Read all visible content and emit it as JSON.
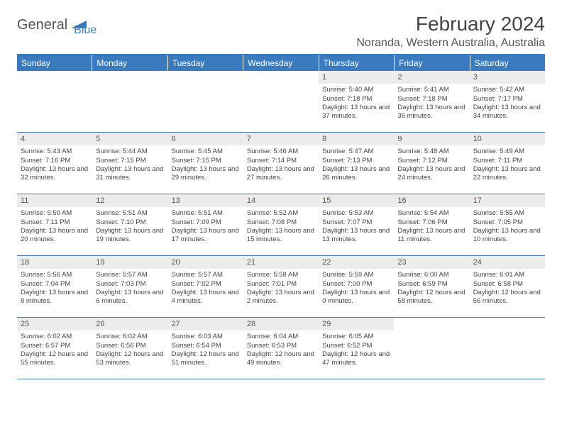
{
  "logo": {
    "part1": "General",
    "part2": "Blue"
  },
  "title": "February 2024",
  "location": "Noranda, Western Australia, Australia",
  "colors": {
    "brand": "#3a7bbf",
    "dayhead_bg": "#3a7bbf",
    "dayhead_text": "#ffffff",
    "daynum_bg": "#ececec",
    "text": "#444444"
  },
  "day_names": [
    "Sunday",
    "Monday",
    "Tuesday",
    "Wednesday",
    "Thursday",
    "Friday",
    "Saturday"
  ],
  "weeks": [
    [
      {
        "day": "",
        "sunrise": "",
        "sunset": "",
        "daylight": ""
      },
      {
        "day": "",
        "sunrise": "",
        "sunset": "",
        "daylight": ""
      },
      {
        "day": "",
        "sunrise": "",
        "sunset": "",
        "daylight": ""
      },
      {
        "day": "",
        "sunrise": "",
        "sunset": "",
        "daylight": ""
      },
      {
        "day": "1",
        "sunrise": "Sunrise: 5:40 AM",
        "sunset": "Sunset: 7:18 PM",
        "daylight": "Daylight: 13 hours and 37 minutes."
      },
      {
        "day": "2",
        "sunrise": "Sunrise: 5:41 AM",
        "sunset": "Sunset: 7:18 PM",
        "daylight": "Daylight: 13 hours and 36 minutes."
      },
      {
        "day": "3",
        "sunrise": "Sunrise: 5:42 AM",
        "sunset": "Sunset: 7:17 PM",
        "daylight": "Daylight: 13 hours and 34 minutes."
      }
    ],
    [
      {
        "day": "4",
        "sunrise": "Sunrise: 5:43 AM",
        "sunset": "Sunset: 7:16 PM",
        "daylight": "Daylight: 13 hours and 32 minutes."
      },
      {
        "day": "5",
        "sunrise": "Sunrise: 5:44 AM",
        "sunset": "Sunset: 7:15 PM",
        "daylight": "Daylight: 13 hours and 31 minutes."
      },
      {
        "day": "6",
        "sunrise": "Sunrise: 5:45 AM",
        "sunset": "Sunset: 7:15 PM",
        "daylight": "Daylight: 13 hours and 29 minutes."
      },
      {
        "day": "7",
        "sunrise": "Sunrise: 5:46 AM",
        "sunset": "Sunset: 7:14 PM",
        "daylight": "Daylight: 13 hours and 27 minutes."
      },
      {
        "day": "8",
        "sunrise": "Sunrise: 5:47 AM",
        "sunset": "Sunset: 7:13 PM",
        "daylight": "Daylight: 13 hours and 26 minutes."
      },
      {
        "day": "9",
        "sunrise": "Sunrise: 5:48 AM",
        "sunset": "Sunset: 7:12 PM",
        "daylight": "Daylight: 13 hours and 24 minutes."
      },
      {
        "day": "10",
        "sunrise": "Sunrise: 5:49 AM",
        "sunset": "Sunset: 7:11 PM",
        "daylight": "Daylight: 13 hours and 22 minutes."
      }
    ],
    [
      {
        "day": "11",
        "sunrise": "Sunrise: 5:50 AM",
        "sunset": "Sunset: 7:11 PM",
        "daylight": "Daylight: 13 hours and 20 minutes."
      },
      {
        "day": "12",
        "sunrise": "Sunrise: 5:51 AM",
        "sunset": "Sunset: 7:10 PM",
        "daylight": "Daylight: 13 hours and 19 minutes."
      },
      {
        "day": "13",
        "sunrise": "Sunrise: 5:51 AM",
        "sunset": "Sunset: 7:09 PM",
        "daylight": "Daylight: 13 hours and 17 minutes."
      },
      {
        "day": "14",
        "sunrise": "Sunrise: 5:52 AM",
        "sunset": "Sunset: 7:08 PM",
        "daylight": "Daylight: 13 hours and 15 minutes."
      },
      {
        "day": "15",
        "sunrise": "Sunrise: 5:53 AM",
        "sunset": "Sunset: 7:07 PM",
        "daylight": "Daylight: 13 hours and 13 minutes."
      },
      {
        "day": "16",
        "sunrise": "Sunrise: 5:54 AM",
        "sunset": "Sunset: 7:06 PM",
        "daylight": "Daylight: 13 hours and 11 minutes."
      },
      {
        "day": "17",
        "sunrise": "Sunrise: 5:55 AM",
        "sunset": "Sunset: 7:05 PM",
        "daylight": "Daylight: 13 hours and 10 minutes."
      }
    ],
    [
      {
        "day": "18",
        "sunrise": "Sunrise: 5:56 AM",
        "sunset": "Sunset: 7:04 PM",
        "daylight": "Daylight: 13 hours and 8 minutes."
      },
      {
        "day": "19",
        "sunrise": "Sunrise: 5:57 AM",
        "sunset": "Sunset: 7:03 PM",
        "daylight": "Daylight: 13 hours and 6 minutes."
      },
      {
        "day": "20",
        "sunrise": "Sunrise: 5:57 AM",
        "sunset": "Sunset: 7:02 PM",
        "daylight": "Daylight: 13 hours and 4 minutes."
      },
      {
        "day": "21",
        "sunrise": "Sunrise: 5:58 AM",
        "sunset": "Sunset: 7:01 PM",
        "daylight": "Daylight: 13 hours and 2 minutes."
      },
      {
        "day": "22",
        "sunrise": "Sunrise: 5:59 AM",
        "sunset": "Sunset: 7:00 PM",
        "daylight": "Daylight: 13 hours and 0 minutes."
      },
      {
        "day": "23",
        "sunrise": "Sunrise: 6:00 AM",
        "sunset": "Sunset: 6:59 PM",
        "daylight": "Daylight: 12 hours and 58 minutes."
      },
      {
        "day": "24",
        "sunrise": "Sunrise: 6:01 AM",
        "sunset": "Sunset: 6:58 PM",
        "daylight": "Daylight: 12 hours and 56 minutes."
      }
    ],
    [
      {
        "day": "25",
        "sunrise": "Sunrise: 6:02 AM",
        "sunset": "Sunset: 6:57 PM",
        "daylight": "Daylight: 12 hours and 55 minutes."
      },
      {
        "day": "26",
        "sunrise": "Sunrise: 6:02 AM",
        "sunset": "Sunset: 6:56 PM",
        "daylight": "Daylight: 12 hours and 53 minutes."
      },
      {
        "day": "27",
        "sunrise": "Sunrise: 6:03 AM",
        "sunset": "Sunset: 6:54 PM",
        "daylight": "Daylight: 12 hours and 51 minutes."
      },
      {
        "day": "28",
        "sunrise": "Sunrise: 6:04 AM",
        "sunset": "Sunset: 6:53 PM",
        "daylight": "Daylight: 12 hours and 49 minutes."
      },
      {
        "day": "29",
        "sunrise": "Sunrise: 6:05 AM",
        "sunset": "Sunset: 6:52 PM",
        "daylight": "Daylight: 12 hours and 47 minutes."
      },
      {
        "day": "",
        "sunrise": "",
        "sunset": "",
        "daylight": ""
      },
      {
        "day": "",
        "sunrise": "",
        "sunset": "",
        "daylight": ""
      }
    ]
  ]
}
